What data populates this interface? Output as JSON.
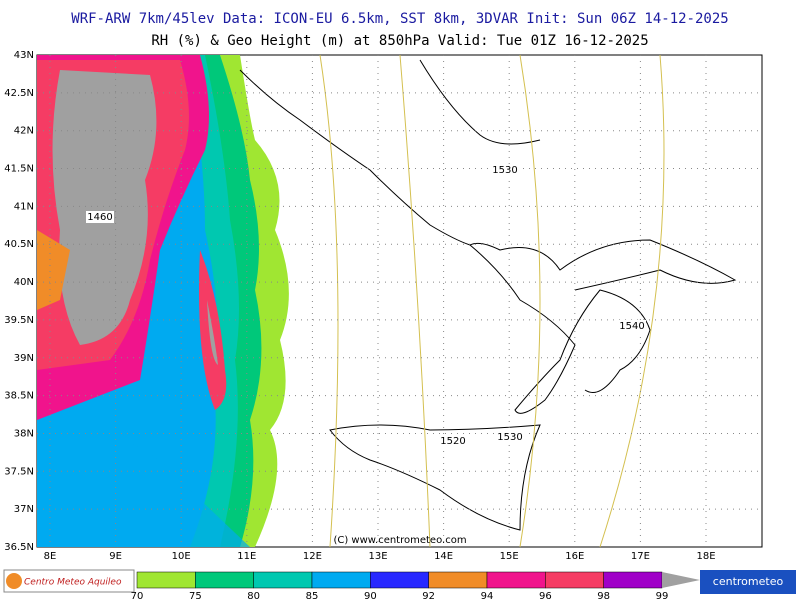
{
  "header": {
    "title": "WRF-ARW 7km/45lev   Data: ICON-EU 6.5km, SST 8km, 3DVAR   Init: Sun 06Z 14-12-2025",
    "subtitle": "RH (%) & Geo Height (m) at 850hPa  Valid: Tue 01Z 16-12-2025"
  },
  "map": {
    "lat_labels": [
      "43N",
      "42.5N",
      "42N",
      "41.5N",
      "41N",
      "40.5N",
      "40N",
      "39.5N",
      "39N",
      "38.5N",
      "38N",
      "37.5N",
      "37N",
      "36.5N"
    ],
    "lon_labels": [
      "8E",
      "9E",
      "10E",
      "11E",
      "12E",
      "13E",
      "14E",
      "15E",
      "16E",
      "17E",
      "18E"
    ],
    "contour_labels": [
      "1460",
      "1530",
      "1540",
      "1520",
      "1530"
    ],
    "copyright": "(C) www.centrometeo.com"
  },
  "colorbar": {
    "labels": [
      70,
      75,
      80,
      85,
      90,
      92,
      94,
      96,
      98,
      99
    ],
    "colors": [
      "#a0e632",
      "#00c87a",
      "#00c8b0",
      "#00aaf0",
      "#2828ff",
      "#f08c28",
      "#f0148c",
      "#f53c64",
      "#a000c8",
      "#a0a0a0"
    ]
  },
  "footer": {
    "left_logo": "Centro Meteo Aquileo",
    "right_logo": "centrometeo"
  }
}
